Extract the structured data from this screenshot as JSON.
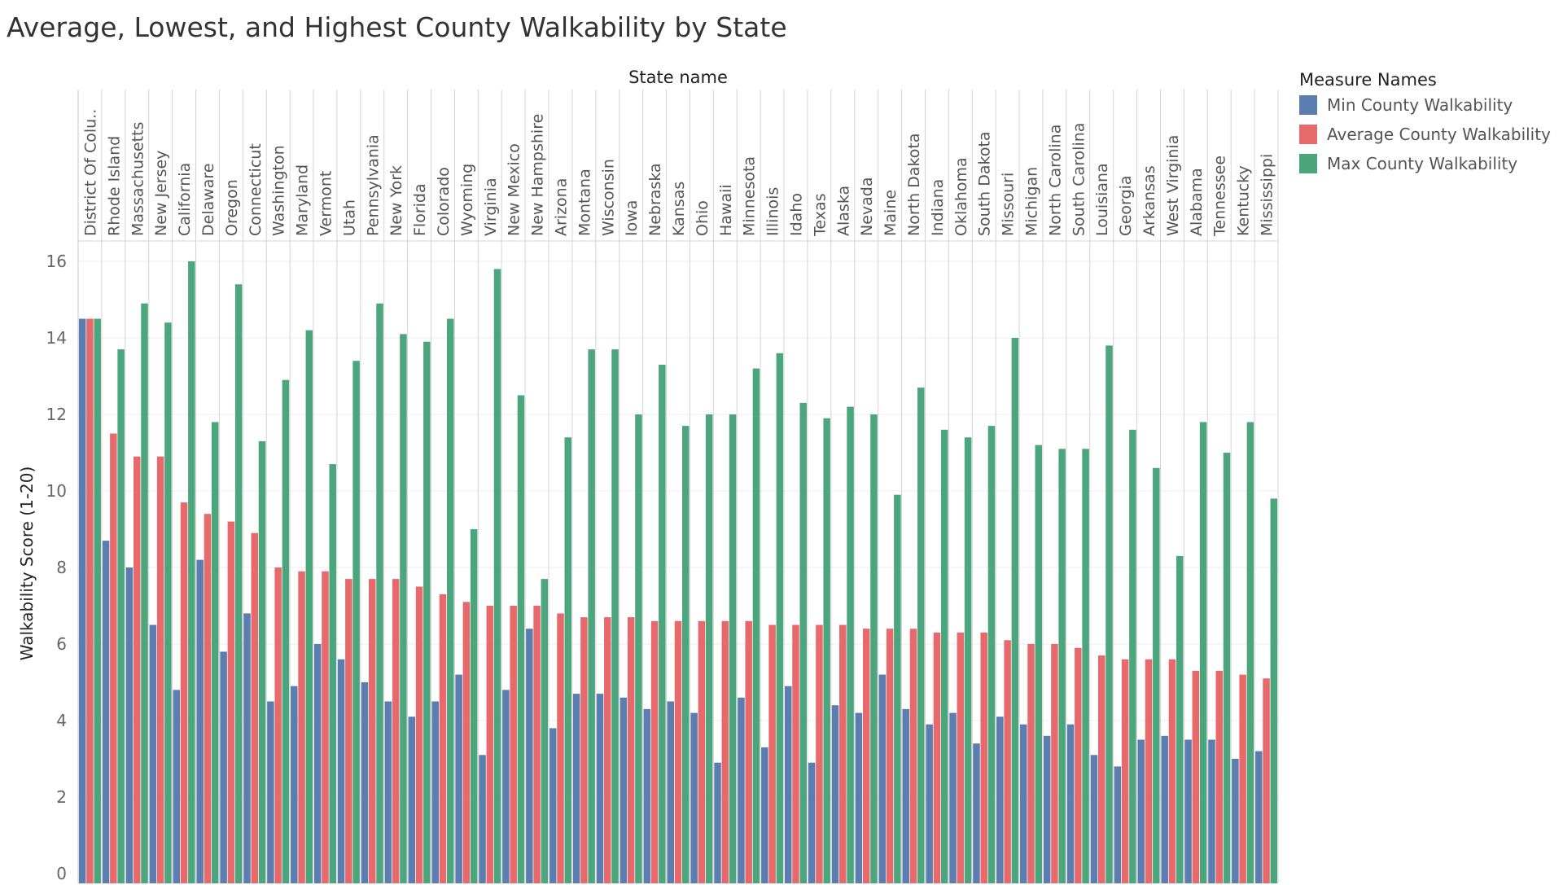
{
  "chart_title": "Average, Lowest, and Highest County Walkability by State",
  "chart_data": {
    "type": "bar",
    "title": "Average, Lowest, and Highest County Walkability by State",
    "column_header": "State name",
    "ylabel": "Walkability Score (1-20)",
    "ylim": [
      0,
      16.8
    ],
    "yticks": [
      0,
      2,
      4,
      6,
      8,
      10,
      12,
      14,
      16
    ],
    "grid": true,
    "legend": {
      "title": "Measure Names",
      "position": "top-right"
    },
    "categories": [
      "District Of Colu..",
      "Rhode Island",
      "Massachusetts",
      "New Jersey",
      "California",
      "Delaware",
      "Oregon",
      "Connecticut",
      "Washington",
      "Maryland",
      "Vermont",
      "Utah",
      "Pennsylvania",
      "New York",
      "Florida",
      "Colorado",
      "Wyoming",
      "Virginia",
      "New Mexico",
      "New Hampshire",
      "Arizona",
      "Montana",
      "Wisconsin",
      "Iowa",
      "Nebraska",
      "Kansas",
      "Ohio",
      "Hawaii",
      "Minnesota",
      "Illinois",
      "Idaho",
      "Texas",
      "Alaska",
      "Nevada",
      "Maine",
      "North Dakota",
      "Indiana",
      "Oklahoma",
      "South Dakota",
      "Missouri",
      "Michigan",
      "North Carolina",
      "South Carolina",
      "Louisiana",
      "Georgia",
      "Arkansas",
      "West Virginia",
      "Alabama",
      "Tennessee",
      "Kentucky",
      "Mississippi"
    ],
    "series": [
      {
        "name": "Min County Walkability",
        "color": "#5b7db0",
        "values": [
          14.5,
          8.7,
          8.0,
          6.5,
          4.8,
          8.2,
          5.8,
          6.8,
          4.5,
          4.9,
          6.0,
          5.6,
          5.0,
          4.5,
          4.1,
          4.5,
          5.2,
          3.1,
          4.8,
          6.4,
          3.8,
          4.7,
          4.7,
          4.6,
          4.3,
          4.5,
          4.2,
          2.9,
          4.6,
          3.3,
          4.9,
          2.9,
          4.4,
          4.2,
          5.2,
          4.3,
          3.9,
          4.2,
          3.4,
          4.1,
          3.9,
          3.6,
          3.9,
          3.1,
          2.8,
          3.5,
          3.6,
          3.5,
          3.5,
          3.0,
          3.2
        ]
      },
      {
        "name": "Average County Walkability",
        "color": "#e8696b",
        "values": [
          14.5,
          11.5,
          10.9,
          10.9,
          9.7,
          9.4,
          9.2,
          8.9,
          8.0,
          7.9,
          7.9,
          7.7,
          7.7,
          7.7,
          7.5,
          7.3,
          7.1,
          7.0,
          7.0,
          7.0,
          6.8,
          6.7,
          6.7,
          6.7,
          6.6,
          6.6,
          6.6,
          6.6,
          6.6,
          6.5,
          6.5,
          6.5,
          6.5,
          6.4,
          6.4,
          6.4,
          6.3,
          6.3,
          6.3,
          6.1,
          6.0,
          6.0,
          5.9,
          5.7,
          5.6,
          5.6,
          5.6,
          5.3,
          5.3,
          5.2,
          5.1
        ]
      },
      {
        "name": "Max County Walkability",
        "color": "#4ca67d",
        "values": [
          14.5,
          13.7,
          14.9,
          14.4,
          16.0,
          11.8,
          15.4,
          11.3,
          12.9,
          14.2,
          10.7,
          13.4,
          14.9,
          14.1,
          13.9,
          14.5,
          9.0,
          15.8,
          12.5,
          7.7,
          11.4,
          13.7,
          13.7,
          12.0,
          13.3,
          11.7,
          12.0,
          12.0,
          13.2,
          13.6,
          12.3,
          11.9,
          12.2,
          12.0,
          9.9,
          12.7,
          11.6,
          11.4,
          11.7,
          14.0,
          11.2,
          11.1,
          11.1,
          13.8,
          11.6,
          10.6,
          8.3,
          11.8,
          11.0,
          11.8,
          9.8
        ]
      }
    ]
  }
}
